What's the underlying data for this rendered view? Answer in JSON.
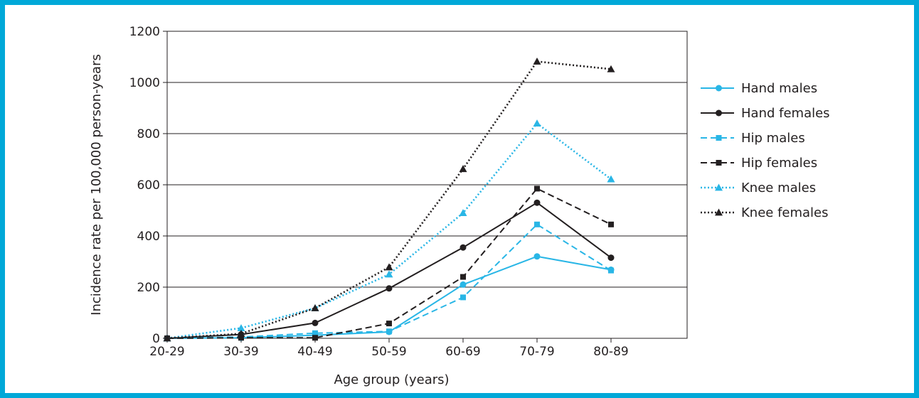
{
  "chart_data": {
    "type": "line",
    "title": "",
    "xlabel": "Age group (years)",
    "ylabel": "Incidence rate per 100,000 person-years",
    "categories": [
      "20-29",
      "30-39",
      "40-49",
      "50-59",
      "60-69",
      "70-79",
      "80-89"
    ],
    "ylim": [
      0,
      1200
    ],
    "yticks": [
      0,
      200,
      400,
      600,
      800,
      1000,
      1200
    ],
    "grid": "horizontal",
    "legend_position": "right",
    "series": [
      {
        "name": "Hand males",
        "values": [
          0,
          2,
          12,
          25,
          210,
          320,
          268
        ],
        "color": "#29b6e6",
        "dash": "solid",
        "marker": "circle"
      },
      {
        "name": "Hand females",
        "values": [
          0,
          15,
          60,
          195,
          355,
          530,
          315
        ],
        "color": "#231f20",
        "dash": "solid",
        "marker": "circle"
      },
      {
        "name": "Hip males",
        "values": [
          0,
          5,
          20,
          27,
          160,
          445,
          265
        ],
        "color": "#29b6e6",
        "dash": "dashed",
        "marker": "square"
      },
      {
        "name": "Hip females",
        "values": [
          0,
          2,
          2,
          58,
          240,
          585,
          445
        ],
        "color": "#231f20",
        "dash": "dashed",
        "marker": "square"
      },
      {
        "name": "Knee males",
        "values": [
          0,
          40,
          118,
          250,
          490,
          840,
          622
        ],
        "color": "#29b6e6",
        "dash": "dotted",
        "marker": "triangle"
      },
      {
        "name": "Knee females",
        "values": [
          0,
          18,
          118,
          278,
          662,
          1082,
          1052
        ],
        "color": "#231f20",
        "dash": "dotted",
        "marker": "triangle"
      }
    ]
  }
}
